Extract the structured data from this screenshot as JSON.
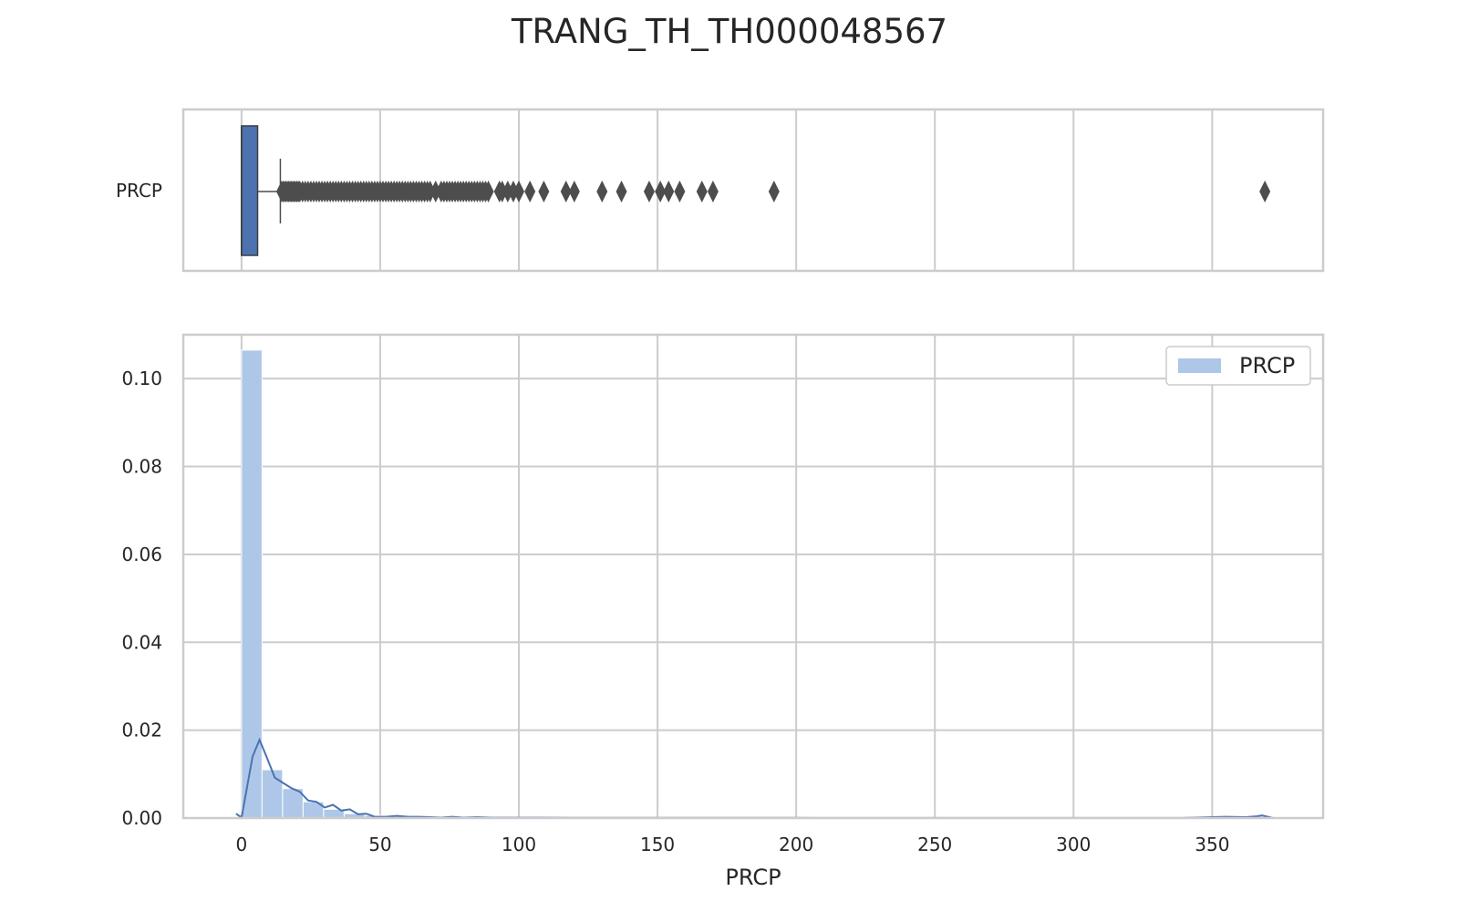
{
  "chart_data": {
    "title": "TRANG_TH_TH000048567",
    "variable": "PRCP",
    "xlabel": "PRCP",
    "xlim": [
      -21,
      390
    ],
    "x_ticks": [
      0,
      50,
      100,
      150,
      200,
      250,
      300,
      350
    ],
    "grid": true,
    "colors": {
      "box": "#4c72b0",
      "hist": "#aec7e8",
      "kde": "#4c72b0",
      "grid": "#cccccc",
      "flier": "#4d4d4d",
      "frame": "#cccccc"
    },
    "panels": [
      {
        "type": "box",
        "ytick_label": "PRCP",
        "box": {
          "q1": 0.0,
          "median": 0.0,
          "q3": 5.8,
          "whisker_low": 0.0,
          "whisker_high": 14.0
        },
        "fliers": [
          14.5,
          15,
          15.5,
          16,
          16.5,
          17,
          17.5,
          18,
          18.5,
          19,
          19.5,
          20,
          20.5,
          21,
          22,
          23,
          24,
          25,
          26,
          27,
          28,
          29,
          30,
          31,
          32,
          33,
          34,
          35,
          36,
          37,
          38,
          39,
          40,
          41,
          42,
          43,
          44,
          45,
          46,
          47,
          48,
          49,
          50,
          51,
          52,
          53,
          54,
          55,
          56,
          57,
          58,
          59,
          60,
          61,
          62,
          63,
          64,
          65,
          66,
          67,
          68,
          70,
          72,
          73,
          74,
          75,
          76,
          77,
          78,
          79,
          80,
          81,
          82,
          83,
          84,
          85,
          86,
          87,
          88,
          89,
          93,
          94,
          96,
          98,
          100,
          104,
          109,
          117,
          120,
          130,
          137,
          147,
          151,
          154,
          158,
          166,
          170,
          192,
          369
        ]
      },
      {
        "type": "histogram",
        "ylim": [
          0,
          0.11
        ],
        "y_ticks": [
          0.0,
          0.02,
          0.04,
          0.06,
          0.08,
          0.1
        ],
        "legend": {
          "label": "PRCP",
          "position": "upper right"
        },
        "bin_width": 7.4,
        "bin_start": 0,
        "bin_densities": [
          0.1065,
          0.011,
          0.0067,
          0.0037,
          0.002,
          0.001,
          0.0006,
          0.0004,
          0.0003,
          0.0002,
          0.0002,
          0.0001,
          0.0001,
          0.0001,
          0.0001,
          5e-05,
          5e-05,
          5e-05,
          5e-05,
          5e-05,
          5e-05,
          3e-05,
          3e-05,
          3e-05,
          3e-05,
          3e-05,
          3e-05,
          3e-05,
          3e-05,
          3e-05,
          3e-05,
          3e-05,
          3e-05,
          3e-05,
          3e-05,
          3e-05,
          3e-05,
          3e-05,
          3e-05,
          3e-05,
          3e-05,
          3e-05,
          3e-05,
          3e-05,
          3e-05,
          3e-05,
          3e-05,
          3e-05,
          3e-05,
          5e-05
        ],
        "kde": {
          "x": [
            -2,
            0,
            4,
            6.5,
            9,
            12,
            15,
            18,
            21,
            24,
            27,
            30,
            33,
            36,
            39,
            42,
            45,
            48,
            52,
            56,
            60,
            64,
            68,
            72,
            76,
            80,
            85,
            90,
            95,
            100,
            110,
            120,
            130,
            140,
            150,
            160,
            170,
            180,
            190,
            200,
            220,
            240,
            260,
            280,
            300,
            320,
            340,
            355,
            362,
            366,
            368,
            370,
            372
          ],
          "y": [
            0.001,
            0.0001,
            0.014,
            0.0178,
            0.014,
            0.0092,
            0.008,
            0.0068,
            0.006,
            0.004,
            0.0037,
            0.0024,
            0.003,
            0.0017,
            0.002,
            0.0009,
            0.001,
            0.0003,
            0.0003,
            0.0005,
            0.0003,
            0.0003,
            0.0002,
            0.0001,
            0.0003,
            0.0001,
            0.0002,
            0.0001,
            0.0001,
            0.0001,
            0.0001,
            5e-05,
            5e-05,
            5e-05,
            5e-05,
            5e-05,
            5e-05,
            5e-05,
            5e-05,
            5e-05,
            3e-05,
            3e-05,
            3e-05,
            3e-05,
            3e-05,
            3e-05,
            5e-05,
            0.0003,
            0.0002,
            0.0004,
            0.0006,
            0.0003,
            0.0
          ]
        }
      }
    ]
  }
}
